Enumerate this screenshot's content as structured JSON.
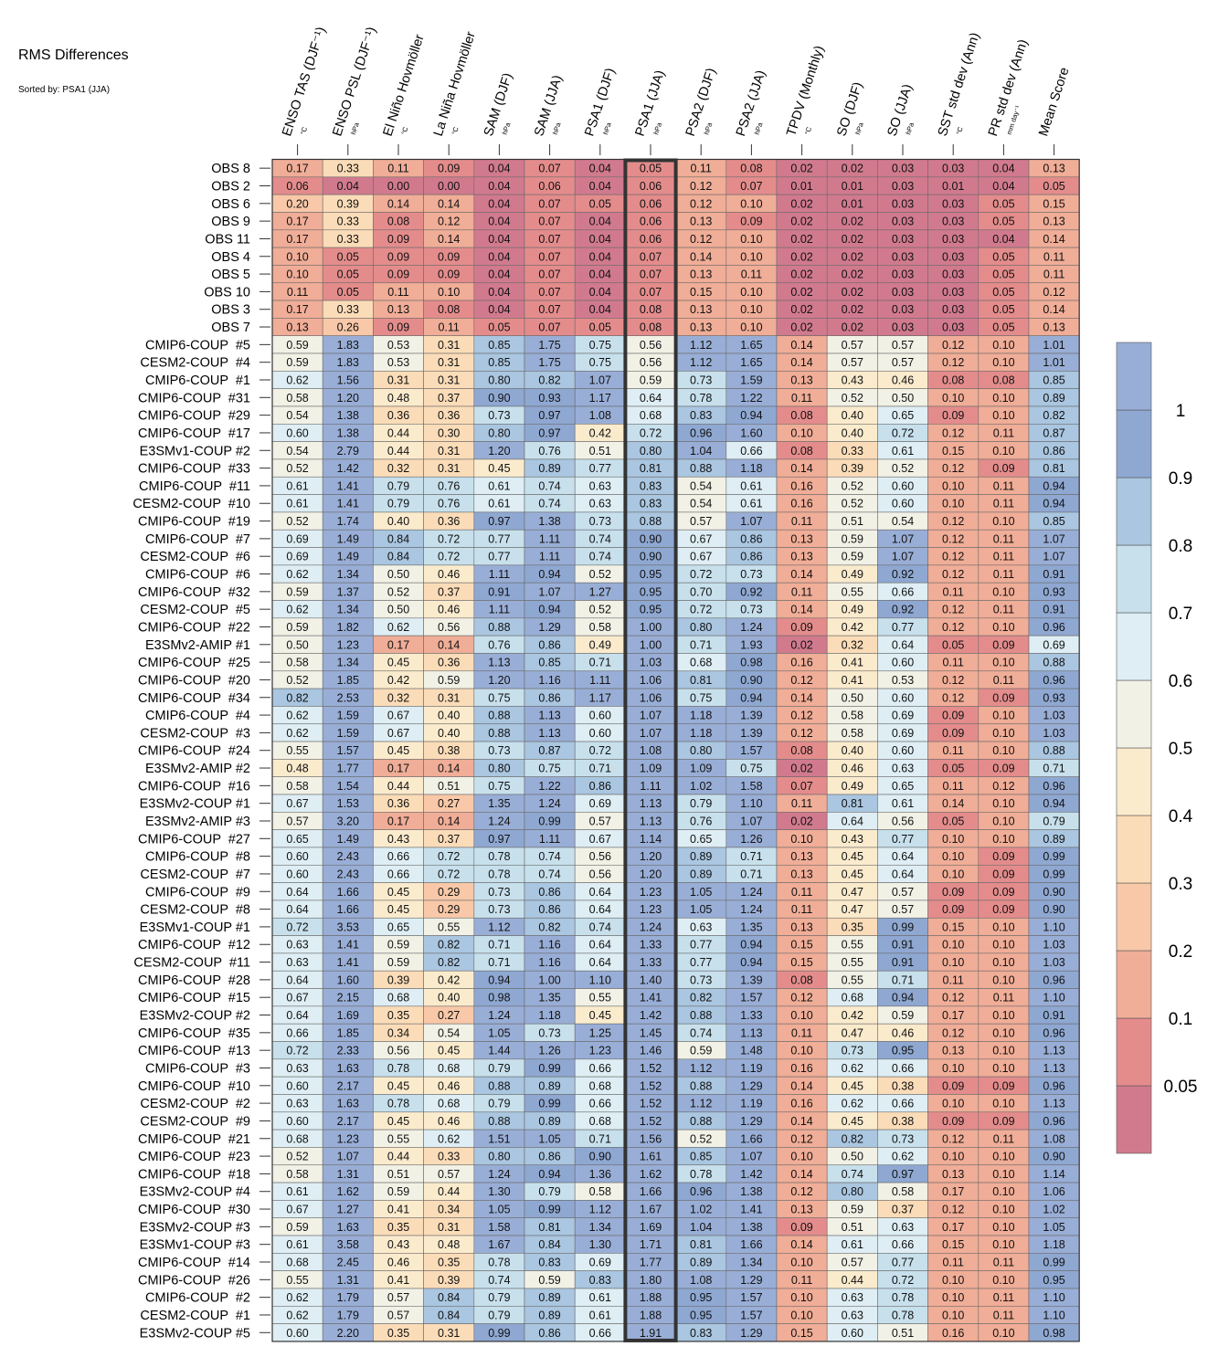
{
  "chart_data": {
    "type": "heatmap",
    "title": "RMS Differences",
    "subtitle": "Sorted by: PSA1 (JJA)",
    "highlighted_column": "PSA1 (JJA)",
    "columns": [
      {
        "name": "ENSO TAS (DJF⁻¹)",
        "unit": "°C"
      },
      {
        "name": "ENSO PSL (DJF⁻¹)",
        "unit": "hPa"
      },
      {
        "name": "El Niño Hovmöller",
        "unit": "°C"
      },
      {
        "name": "La Niña Hovmöller",
        "unit": "°C"
      },
      {
        "name": "SAM (DJF)",
        "unit": "hPa"
      },
      {
        "name": "SAM (JJA)",
        "unit": "hPa"
      },
      {
        "name": "PSA1 (DJF)",
        "unit": "hPa"
      },
      {
        "name": "PSA1 (JJA)",
        "unit": "hPa"
      },
      {
        "name": "PSA2 (DJF)",
        "unit": "hPa"
      },
      {
        "name": "PSA2 (JJA)",
        "unit": "hPa"
      },
      {
        "name": "TPDV (Monthly)",
        "unit": "°C"
      },
      {
        "name": "SO (DJF)",
        "unit": "hPa"
      },
      {
        "name": "SO (JJA)",
        "unit": "hPa"
      },
      {
        "name": "SST std dev (Ann)",
        "unit": "°C"
      },
      {
        "name": "PR std dev (Ann)",
        "unit": "mm day⁻¹"
      },
      {
        "name": "Mean Score",
        "unit": ""
      }
    ],
    "rows": [
      "OBS 8",
      "OBS 2",
      "OBS 6",
      "OBS 9",
      "OBS 11",
      "OBS 4",
      "OBS 5",
      "OBS 10",
      "OBS 3",
      "OBS 7",
      "CMIP6-COUP  #5",
      "CESM2-COUP  #4",
      "CMIP6-COUP  #1",
      "CMIP6-COUP  #31",
      "CMIP6-COUP  #29",
      "CMIP6-COUP  #17",
      "E3SMv1-COUP #2",
      "CMIP6-COUP  #33",
      "CMIP6-COUP  #11",
      "CESM2-COUP  #10",
      "CMIP6-COUP  #19",
      "CMIP6-COUP  #7",
      "CESM2-COUP  #6",
      "CMIP6-COUP  #6",
      "CMIP6-COUP  #32",
      "CESM2-COUP  #5",
      "CMIP6-COUP  #22",
      "E3SMv2-AMIP #1",
      "CMIP6-COUP  #25",
      "CMIP6-COUP  #20",
      "CMIP6-COUP  #34",
      "CMIP6-COUP  #4",
      "CESM2-COUP  #3",
      "CMIP6-COUP  #24",
      "E3SMv2-AMIP #2",
      "CMIP6-COUP  #16",
      "E3SMv2-COUP #1",
      "E3SMv2-AMIP #3",
      "CMIP6-COUP  #27",
      "CMIP6-COUP  #8",
      "CESM2-COUP  #7",
      "CMIP6-COUP  #9",
      "CESM2-COUP  #8",
      "E3SMv1-COUP #1",
      "CMIP6-COUP  #12",
      "CESM2-COUP  #11",
      "CMIP6-COUP  #28",
      "CMIP6-COUP  #15",
      "E3SMv2-COUP #2",
      "CMIP6-COUP  #35",
      "CMIP6-COUP  #13",
      "CMIP6-COUP  #3",
      "CMIP6-COUP  #10",
      "CESM2-COUP  #2",
      "CESM2-COUP  #9",
      "CMIP6-COUP  #21",
      "CMIP6-COUP  #23",
      "CMIP6-COUP  #18",
      "E3SMv2-COUP #4",
      "CMIP6-COUP  #30",
      "E3SMv2-COUP #3",
      "E3SMv1-COUP #3",
      "CMIP6-COUP  #14",
      "CMIP6-COUP  #26",
      "CMIP6-COUP  #2",
      "CESM2-COUP  #1",
      "E3SMv2-COUP #5"
    ],
    "values": [
      [
        0.17,
        0.33,
        0.11,
        0.09,
        0.04,
        0.07,
        0.04,
        0.05,
        0.11,
        0.08,
        0.02,
        0.02,
        0.03,
        0.03,
        0.04,
        0.13
      ],
      [
        0.06,
        0.04,
        0.0,
        0.0,
        0.04,
        0.06,
        0.04,
        0.06,
        0.12,
        0.07,
        0.01,
        0.01,
        0.03,
        0.01,
        0.04,
        0.05
      ],
      [
        0.2,
        0.39,
        0.14,
        0.14,
        0.04,
        0.07,
        0.05,
        0.06,
        0.12,
        0.1,
        0.02,
        0.01,
        0.03,
        0.03,
        0.05,
        0.15
      ],
      [
        0.17,
        0.33,
        0.08,
        0.12,
        0.04,
        0.07,
        0.04,
        0.06,
        0.13,
        0.09,
        0.02,
        0.02,
        0.03,
        0.03,
        0.05,
        0.13
      ],
      [
        0.17,
        0.33,
        0.09,
        0.14,
        0.04,
        0.07,
        0.04,
        0.06,
        0.12,
        0.1,
        0.02,
        0.02,
        0.03,
        0.03,
        0.04,
        0.14
      ],
      [
        0.1,
        0.05,
        0.09,
        0.09,
        0.04,
        0.07,
        0.04,
        0.07,
        0.14,
        0.1,
        0.02,
        0.02,
        0.03,
        0.03,
        0.05,
        0.11
      ],
      [
        0.1,
        0.05,
        0.09,
        0.09,
        0.04,
        0.07,
        0.04,
        0.07,
        0.13,
        0.11,
        0.02,
        0.02,
        0.03,
        0.03,
        0.05,
        0.11
      ],
      [
        0.11,
        0.05,
        0.11,
        0.1,
        0.04,
        0.07,
        0.04,
        0.07,
        0.15,
        0.1,
        0.02,
        0.02,
        0.03,
        0.03,
        0.05,
        0.12
      ],
      [
        0.17,
        0.33,
        0.13,
        0.08,
        0.04,
        0.07,
        0.04,
        0.08,
        0.13,
        0.1,
        0.02,
        0.02,
        0.03,
        0.03,
        0.05,
        0.14
      ],
      [
        0.13,
        0.26,
        0.09,
        0.11,
        0.05,
        0.07,
        0.05,
        0.08,
        0.13,
        0.1,
        0.02,
        0.02,
        0.03,
        0.03,
        0.05,
        0.13
      ],
      [
        0.59,
        1.83,
        0.53,
        0.31,
        0.85,
        1.75,
        0.75,
        0.56,
        1.12,
        1.65,
        0.14,
        0.57,
        0.57,
        0.12,
        0.1,
        1.01
      ],
      [
        0.59,
        1.83,
        0.53,
        0.31,
        0.85,
        1.75,
        0.75,
        0.56,
        1.12,
        1.65,
        0.14,
        0.57,
        0.57,
        0.12,
        0.1,
        1.01
      ],
      [
        0.62,
        1.56,
        0.31,
        0.31,
        0.8,
        0.82,
        1.07,
        0.59,
        0.73,
        1.59,
        0.13,
        0.43,
        0.46,
        0.08,
        0.08,
        0.85
      ],
      [
        0.58,
        1.2,
        0.48,
        0.37,
        0.9,
        0.93,
        1.17,
        0.64,
        0.78,
        1.22,
        0.11,
        0.52,
        0.5,
        0.1,
        0.1,
        0.89
      ],
      [
        0.54,
        1.38,
        0.36,
        0.36,
        0.73,
        0.97,
        1.08,
        0.68,
        0.83,
        0.94,
        0.08,
        0.4,
        0.65,
        0.09,
        0.1,
        0.82
      ],
      [
        0.6,
        1.38,
        0.44,
        0.3,
        0.8,
        0.97,
        0.42,
        0.72,
        0.96,
        1.6,
        0.1,
        0.4,
        0.72,
        0.12,
        0.11,
        0.87
      ],
      [
        0.54,
        2.79,
        0.44,
        0.31,
        1.2,
        0.76,
        0.51,
        0.8,
        1.04,
        0.66,
        0.08,
        0.33,
        0.61,
        0.15,
        0.1,
        0.86
      ],
      [
        0.52,
        1.42,
        0.32,
        0.31,
        0.45,
        0.89,
        0.77,
        0.81,
        0.88,
        1.18,
        0.14,
        0.39,
        0.52,
        0.12,
        0.09,
        0.81
      ],
      [
        0.61,
        1.41,
        0.79,
        0.76,
        0.61,
        0.74,
        0.63,
        0.83,
        0.54,
        0.61,
        0.16,
        0.52,
        0.6,
        0.1,
        0.11,
        0.94
      ],
      [
        0.61,
        1.41,
        0.79,
        0.76,
        0.61,
        0.74,
        0.63,
        0.83,
        0.54,
        0.61,
        0.16,
        0.52,
        0.6,
        0.1,
        0.11,
        0.94
      ],
      [
        0.52,
        1.74,
        0.4,
        0.36,
        0.97,
        1.38,
        0.73,
        0.88,
        0.57,
        1.07,
        0.11,
        0.51,
        0.54,
        0.12,
        0.1,
        0.85
      ],
      [
        0.69,
        1.49,
        0.84,
        0.72,
        0.77,
        1.11,
        0.74,
        0.9,
        0.67,
        0.86,
        0.13,
        0.59,
        1.07,
        0.12,
        0.11,
        1.07
      ],
      [
        0.69,
        1.49,
        0.84,
        0.72,
        0.77,
        1.11,
        0.74,
        0.9,
        0.67,
        0.86,
        0.13,
        0.59,
        1.07,
        0.12,
        0.11,
        1.07
      ],
      [
        0.62,
        1.34,
        0.5,
        0.46,
        1.11,
        0.94,
        0.52,
        0.95,
        0.72,
        0.73,
        0.14,
        0.49,
        0.92,
        0.12,
        0.11,
        0.91
      ],
      [
        0.59,
        1.37,
        0.52,
        0.37,
        0.91,
        1.07,
        1.27,
        0.95,
        0.7,
        0.92,
        0.11,
        0.55,
        0.66,
        0.11,
        0.1,
        0.93
      ],
      [
        0.62,
        1.34,
        0.5,
        0.46,
        1.11,
        0.94,
        0.52,
        0.95,
        0.72,
        0.73,
        0.14,
        0.49,
        0.92,
        0.12,
        0.11,
        0.91
      ],
      [
        0.59,
        1.82,
        0.62,
        0.56,
        0.88,
        1.29,
        0.58,
        1.0,
        0.8,
        1.24,
        0.09,
        0.42,
        0.77,
        0.12,
        0.1,
        0.96
      ],
      [
        0.5,
        1.23,
        0.17,
        0.14,
        0.76,
        0.86,
        0.49,
        1.0,
        0.71,
        1.93,
        0.02,
        0.32,
        0.64,
        0.05,
        0.09,
        0.69
      ],
      [
        0.58,
        1.34,
        0.45,
        0.36,
        1.13,
        0.85,
        0.71,
        1.03,
        0.68,
        0.98,
        0.16,
        0.41,
        0.6,
        0.11,
        0.1,
        0.88
      ],
      [
        0.52,
        1.85,
        0.42,
        0.59,
        1.2,
        1.16,
        1.11,
        1.06,
        0.81,
        0.9,
        0.12,
        0.41,
        0.53,
        0.12,
        0.11,
        0.96
      ],
      [
        0.82,
        2.53,
        0.32,
        0.31,
        0.75,
        0.86,
        1.17,
        1.06,
        0.75,
        0.94,
        0.14,
        0.5,
        0.6,
        0.12,
        0.09,
        0.93
      ],
      [
        0.62,
        1.59,
        0.67,
        0.4,
        0.88,
        1.13,
        0.6,
        1.07,
        1.18,
        1.39,
        0.12,
        0.58,
        0.69,
        0.09,
        0.1,
        1.03
      ],
      [
        0.62,
        1.59,
        0.67,
        0.4,
        0.88,
        1.13,
        0.6,
        1.07,
        1.18,
        1.39,
        0.12,
        0.58,
        0.69,
        0.09,
        0.1,
        1.03
      ],
      [
        0.55,
        1.57,
        0.45,
        0.38,
        0.73,
        0.87,
        0.72,
        1.08,
        0.8,
        1.57,
        0.08,
        0.4,
        0.6,
        0.11,
        0.1,
        0.88
      ],
      [
        0.48,
        1.77,
        0.17,
        0.14,
        0.8,
        0.75,
        0.71,
        1.09,
        1.09,
        0.75,
        0.02,
        0.46,
        0.63,
        0.05,
        0.09,
        0.71
      ],
      [
        0.58,
        1.54,
        0.44,
        0.51,
        0.75,
        1.22,
        0.86,
        1.11,
        1.02,
        1.58,
        0.07,
        0.49,
        0.65,
        0.11,
        0.12,
        0.96
      ],
      [
        0.67,
        1.53,
        0.36,
        0.27,
        1.35,
        1.24,
        0.69,
        1.13,
        0.79,
        1.1,
        0.11,
        0.81,
        0.61,
        0.14,
        0.1,
        0.94
      ],
      [
        0.57,
        3.2,
        0.17,
        0.14,
        1.24,
        0.99,
        0.57,
        1.13,
        0.76,
        1.07,
        0.02,
        0.64,
        0.56,
        0.05,
        0.1,
        0.79
      ],
      [
        0.65,
        1.49,
        0.43,
        0.37,
        0.97,
        1.11,
        0.67,
        1.14,
        0.65,
        1.26,
        0.1,
        0.43,
        0.77,
        0.1,
        0.1,
        0.89
      ],
      [
        0.6,
        2.43,
        0.66,
        0.72,
        0.78,
        0.74,
        0.56,
        1.2,
        0.89,
        0.71,
        0.13,
        0.45,
        0.64,
        0.1,
        0.09,
        0.99
      ],
      [
        0.6,
        2.43,
        0.66,
        0.72,
        0.78,
        0.74,
        0.56,
        1.2,
        0.89,
        0.71,
        0.13,
        0.45,
        0.64,
        0.1,
        0.09,
        0.99
      ],
      [
        0.64,
        1.66,
        0.45,
        0.29,
        0.73,
        0.86,
        0.64,
        1.23,
        1.05,
        1.24,
        0.11,
        0.47,
        0.57,
        0.09,
        0.09,
        0.9
      ],
      [
        0.64,
        1.66,
        0.45,
        0.29,
        0.73,
        0.86,
        0.64,
        1.23,
        1.05,
        1.24,
        0.11,
        0.47,
        0.57,
        0.09,
        0.09,
        0.9
      ],
      [
        0.72,
        3.53,
        0.65,
        0.55,
        1.12,
        0.82,
        0.74,
        1.24,
        0.63,
        1.35,
        0.13,
        0.35,
        0.99,
        0.15,
        0.1,
        1.1
      ],
      [
        0.63,
        1.41,
        0.59,
        0.82,
        0.71,
        1.16,
        0.64,
        1.33,
        0.77,
        0.94,
        0.15,
        0.55,
        0.91,
        0.1,
        0.1,
        1.03
      ],
      [
        0.63,
        1.41,
        0.59,
        0.82,
        0.71,
        1.16,
        0.64,
        1.33,
        0.77,
        0.94,
        0.15,
        0.55,
        0.91,
        0.1,
        0.1,
        1.03
      ],
      [
        0.64,
        1.6,
        0.39,
        0.42,
        0.94,
        1.0,
        1.1,
        1.4,
        0.73,
        1.39,
        0.08,
        0.55,
        0.71,
        0.11,
        0.1,
        0.96
      ],
      [
        0.67,
        2.15,
        0.68,
        0.4,
        0.98,
        1.35,
        0.55,
        1.41,
        0.82,
        1.57,
        0.12,
        0.68,
        0.94,
        0.12,
        0.11,
        1.1
      ],
      [
        0.64,
        1.69,
        0.35,
        0.27,
        1.24,
        1.18,
        0.45,
        1.42,
        0.88,
        1.33,
        0.1,
        0.42,
        0.59,
        0.17,
        0.1,
        0.91
      ],
      [
        0.66,
        1.85,
        0.34,
        0.54,
        1.05,
        0.73,
        1.25,
        1.45,
        0.74,
        1.13,
        0.11,
        0.47,
        0.46,
        0.12,
        0.1,
        0.96
      ],
      [
        0.72,
        2.33,
        0.56,
        0.45,
        1.44,
        1.26,
        1.23,
        1.46,
        0.59,
        1.48,
        0.1,
        0.73,
        0.95,
        0.13,
        0.1,
        1.13
      ],
      [
        0.63,
        1.63,
        0.78,
        0.68,
        0.79,
        0.99,
        0.66,
        1.52,
        1.12,
        1.19,
        0.16,
        0.62,
        0.66,
        0.1,
        0.1,
        1.13
      ],
      [
        0.6,
        2.17,
        0.45,
        0.46,
        0.88,
        0.89,
        0.68,
        1.52,
        0.88,
        1.29,
        0.14,
        0.45,
        0.38,
        0.09,
        0.09,
        0.96
      ],
      [
        0.63,
        1.63,
        0.78,
        0.68,
        0.79,
        0.99,
        0.66,
        1.52,
        1.12,
        1.19,
        0.16,
        0.62,
        0.66,
        0.1,
        0.1,
        1.13
      ],
      [
        0.6,
        2.17,
        0.45,
        0.46,
        0.88,
        0.89,
        0.68,
        1.52,
        0.88,
        1.29,
        0.14,
        0.45,
        0.38,
        0.09,
        0.09,
        0.96
      ],
      [
        0.68,
        1.23,
        0.55,
        0.62,
        1.51,
        1.05,
        0.71,
        1.56,
        0.52,
        1.66,
        0.12,
        0.82,
        0.73,
        0.12,
        0.11,
        1.08
      ],
      [
        0.52,
        1.07,
        0.44,
        0.33,
        0.8,
        0.86,
        0.9,
        1.61,
        0.85,
        1.07,
        0.1,
        0.5,
        0.62,
        0.1,
        0.1,
        0.9
      ],
      [
        0.58,
        1.31,
        0.51,
        0.57,
        1.24,
        0.94,
        1.36,
        1.62,
        0.78,
        1.42,
        0.14,
        0.74,
        0.97,
        0.13,
        0.1,
        1.14
      ],
      [
        0.61,
        1.62,
        0.59,
        0.44,
        1.3,
        0.79,
        0.58,
        1.66,
        0.96,
        1.38,
        0.12,
        0.8,
        0.58,
        0.17,
        0.1,
        1.06
      ],
      [
        0.67,
        1.27,
        0.41,
        0.34,
        1.05,
        0.99,
        1.12,
        1.67,
        1.02,
        1.41,
        0.13,
        0.59,
        0.37,
        0.12,
        0.1,
        1.02
      ],
      [
        0.59,
        1.63,
        0.35,
        0.31,
        1.58,
        0.81,
        1.34,
        1.69,
        1.04,
        1.38,
        0.09,
        0.51,
        0.63,
        0.17,
        0.1,
        1.05
      ],
      [
        0.61,
        3.58,
        0.43,
        0.48,
        1.67,
        0.84,
        1.3,
        1.71,
        0.81,
        1.66,
        0.14,
        0.61,
        0.66,
        0.15,
        0.1,
        1.18
      ],
      [
        0.68,
        2.45,
        0.46,
        0.35,
        0.78,
        0.83,
        0.69,
        1.77,
        0.89,
        1.34,
        0.1,
        0.57,
        0.77,
        0.11,
        0.11,
        0.99
      ],
      [
        0.55,
        1.31,
        0.41,
        0.39,
        0.74,
        0.59,
        0.83,
        1.8,
        1.08,
        1.29,
        0.11,
        0.44,
        0.72,
        0.1,
        0.1,
        0.95
      ],
      [
        0.62,
        1.79,
        0.57,
        0.84,
        0.79,
        0.89,
        0.61,
        1.88,
        0.95,
        1.57,
        0.1,
        0.63,
        0.78,
        0.1,
        0.11,
        1.1
      ],
      [
        0.62,
        1.79,
        0.57,
        0.84,
        0.79,
        0.89,
        0.61,
        1.88,
        0.95,
        1.57,
        0.1,
        0.63,
        0.78,
        0.1,
        0.11,
        1.1
      ],
      [
        0.6,
        2.2,
        0.35,
        0.31,
        0.99,
        0.86,
        0.66,
        1.91,
        0.83,
        1.29,
        0.15,
        0.6,
        0.51,
        0.16,
        0.1,
        0.98
      ]
    ],
    "colorbar": {
      "tick_labels": [
        "0.05",
        "0.1",
        "0.2",
        "0.3",
        "0.4",
        "0.5",
        "0.6",
        "0.7",
        "0.8",
        "0.9",
        "1"
      ],
      "bins": [
        0.05,
        0.1,
        0.2,
        0.3,
        0.4,
        0.5,
        0.6,
        0.7,
        0.8,
        0.9,
        1
      ],
      "colors": [
        "#d17a8e",
        "#e48c8c",
        "#f0ad97",
        "#f8c8a8",
        "#fbdcb8",
        "#fbebcd",
        "#f2f1e6",
        "#deeef4",
        "#c7e0ec",
        "#aac6e0",
        "#8fa8d2",
        "#99aed6"
      ]
    }
  }
}
